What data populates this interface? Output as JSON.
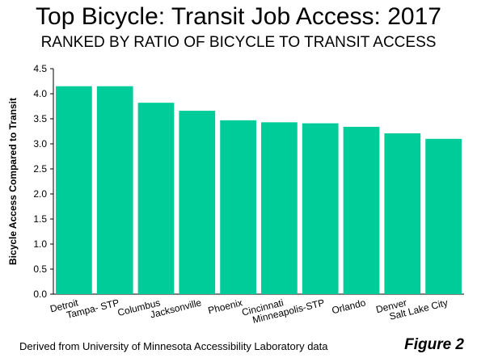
{
  "header": {
    "title": "Top Bicycle: Transit Job Access: 2017",
    "subtitle": "RANKED BY RATIO OF BICYCLE TO TRANSIT ACCESS"
  },
  "footer": {
    "source": "Derived from University of Minnesota Accessibility Laboratory data",
    "figure": "Figure 2"
  },
  "chart_data": {
    "type": "bar",
    "title": "Top Bicycle: Transit Job Access: 2017",
    "subtitle": "RANKED BY RATIO OF BICYCLE TO TRANSIT ACCESS",
    "xlabel": "",
    "ylabel": "Bicycle Access Compared to Transit",
    "categories": [
      "Detroit",
      "Tampa- STP",
      "Columbus",
      "Jacksonville",
      "Phoenix",
      "Cincinnati",
      "Minneapolis-STP",
      "Orlando",
      "Denver",
      "Salt Lake City"
    ],
    "values": [
      4.15,
      4.15,
      3.82,
      3.66,
      3.47,
      3.43,
      3.41,
      3.34,
      3.21,
      3.1
    ],
    "yticks": [
      "0.0",
      "0.5",
      "1.0",
      "1.5",
      "2.0",
      "2.5",
      "3.0",
      "3.5",
      "4.0",
      "4.5"
    ],
    "ylim": [
      0,
      4.5
    ],
    "grid": false,
    "legend": "none",
    "bar_color": "#00CC99"
  }
}
